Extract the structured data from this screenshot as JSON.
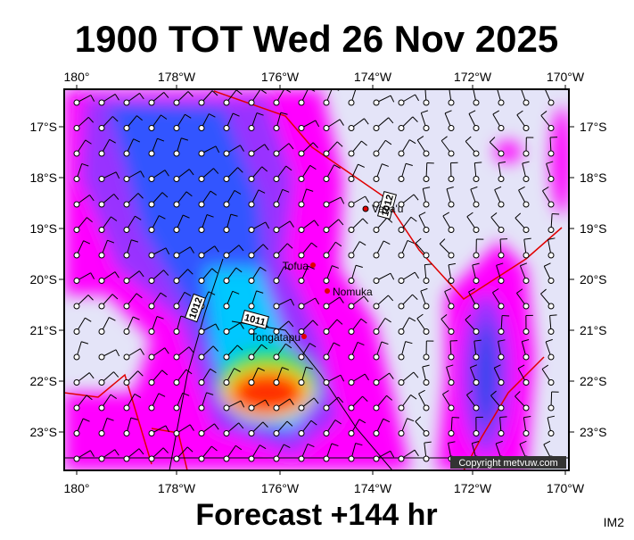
{
  "header": {
    "title": "1900 TOT Wed 26 Nov 2025"
  },
  "map": {
    "lon_labels": [
      "180°",
      "178°W",
      "176°W",
      "174°W",
      "172°W",
      "170°W"
    ],
    "lat_labels": [
      "17°S",
      "18°S",
      "19°S",
      "20°S",
      "21°S",
      "22°S",
      "23°S"
    ],
    "places": [
      {
        "name": "Vava'u"
      },
      {
        "name": "Tofua"
      },
      {
        "name": "Nomuka"
      },
      {
        "name": "Tongatapu"
      }
    ],
    "isobar_labels": [
      "1012",
      "1011",
      "1012"
    ],
    "copyright": "Copyright metvuw.com"
  },
  "footer": {
    "forecast": "Forecast +144 hr",
    "code": "IM2"
  }
}
